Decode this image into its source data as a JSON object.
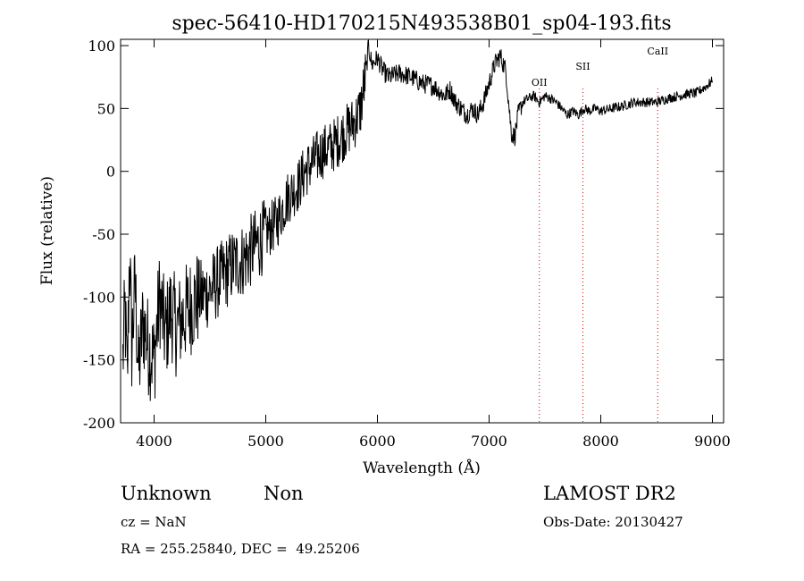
{
  "chart_data": {
    "type": "line",
    "title": "spec-56410-HD170215N493538B01_sp04-193.fits",
    "xlabel": "Wavelength (Å)",
    "ylabel": "Flux (relative)",
    "xlim": [
      3700,
      9100
    ],
    "ylim": [
      -200,
      105
    ],
    "x_ticks": [
      4000,
      5000,
      6000,
      7000,
      8000,
      9000
    ],
    "y_ticks": [
      -200,
      -150,
      -100,
      -50,
      0,
      50,
      100
    ],
    "grid": false,
    "series": [
      {
        "color": "#000000",
        "x": [
          3720,
          3740,
          3760,
          3780,
          3800,
          3830,
          3860,
          3900,
          3950,
          4000,
          4050,
          4100,
          4150,
          4200,
          4300,
          4400,
          4500,
          4600,
          4700,
          4800,
          4900,
          5000,
          5100,
          5200,
          5300,
          5350,
          5400,
          5500,
          5600,
          5700,
          5800,
          5850,
          5900,
          5920,
          5950,
          6000,
          6050,
          6100,
          6200,
          6300,
          6400,
          6500,
          6600,
          6650,
          6700,
          6750,
          6800,
          6850,
          6900,
          6950,
          7000,
          7050,
          7100,
          7150,
          7170,
          7200,
          7230,
          7260,
          7300,
          7350,
          7400,
          7450,
          7500,
          7550,
          7600,
          7650,
          7700,
          7750,
          7800,
          7850,
          7900,
          7950,
          8000,
          8100,
          8200,
          8300,
          8400,
          8500,
          8600,
          8700,
          8800,
          8850,
          8900,
          8950,
          9000
        ],
        "y": [
          -150,
          -110,
          -170,
          -60,
          -140,
          -90,
          -160,
          -120,
          -140,
          -150,
          -100,
          -130,
          -110,
          -125,
          -110,
          -100,
          -95,
          -85,
          -75,
          -70,
          -60,
          -50,
          -40,
          -20,
          -10,
          0,
          5,
          15,
          20,
          30,
          40,
          50,
          80,
          100,
          85,
          90,
          80,
          75,
          78,
          75,
          70,
          68,
          60,
          65,
          55,
          50,
          45,
          50,
          45,
          55,
          70,
          85,
          92,
          80,
          60,
          30,
          28,
          45,
          55,
          58,
          60,
          55,
          60,
          58,
          55,
          50,
          45,
          48,
          45,
          50,
          48,
          50,
          48,
          50,
          52,
          55,
          55,
          55,
          58,
          60,
          62,
          62,
          65,
          68,
          72
        ]
      }
    ],
    "annotations": [
      {
        "text": "OII",
        "x": 7450
      },
      {
        "text": "SII",
        "x": 7840
      },
      {
        "text": "CaII",
        "x": 8510
      }
    ]
  },
  "info": {
    "class_text": "Unknown",
    "subclass_text": "Non",
    "cz_text": "cz = NaN",
    "coords_text": "RA = 255.25840, DEC =  49.25206",
    "survey_text": "LAMOST DR2",
    "obsdate_text": "Obs-Date: 20130427"
  }
}
